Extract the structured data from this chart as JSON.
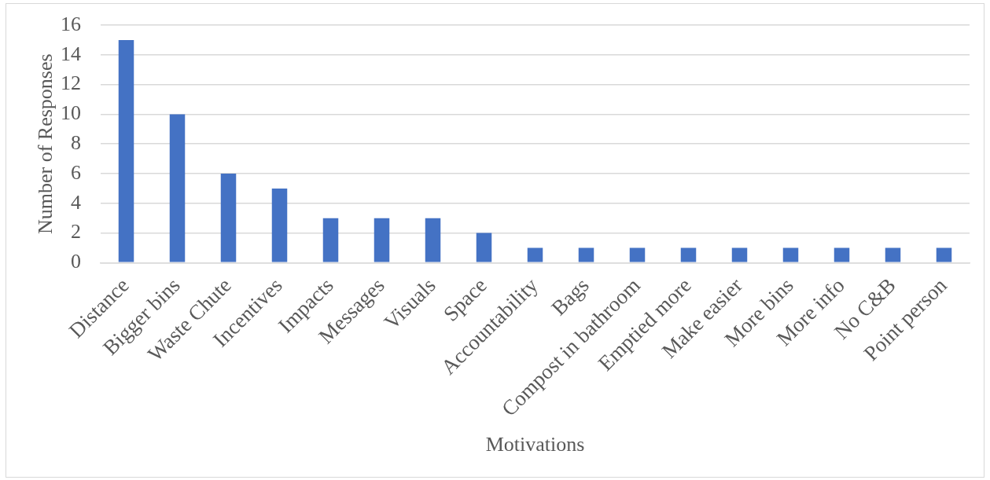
{
  "chart_data": {
    "type": "bar",
    "xlabel": "Motivations",
    "ylabel": "Number of Responses",
    "categories": [
      "Distance",
      "Bigger bins",
      "Waste Chute",
      "Incentives",
      "Impacts",
      "Messages",
      "Visuals",
      "Space",
      "Accountability",
      "Bags",
      "Compost in bathroom",
      "Emptied more",
      "Make easier",
      "More bins",
      "More info",
      "No C&B",
      "Point person"
    ],
    "values": [
      15,
      10,
      6,
      5,
      3,
      3,
      3,
      2,
      1,
      1,
      1,
      1,
      1,
      1,
      1,
      1,
      1
    ],
    "color": "#4472c4",
    "ylim": [
      0,
      16
    ],
    "yticks": [
      0,
      2,
      4,
      6,
      8,
      10,
      12,
      14,
      16
    ],
    "grid": "y"
  }
}
